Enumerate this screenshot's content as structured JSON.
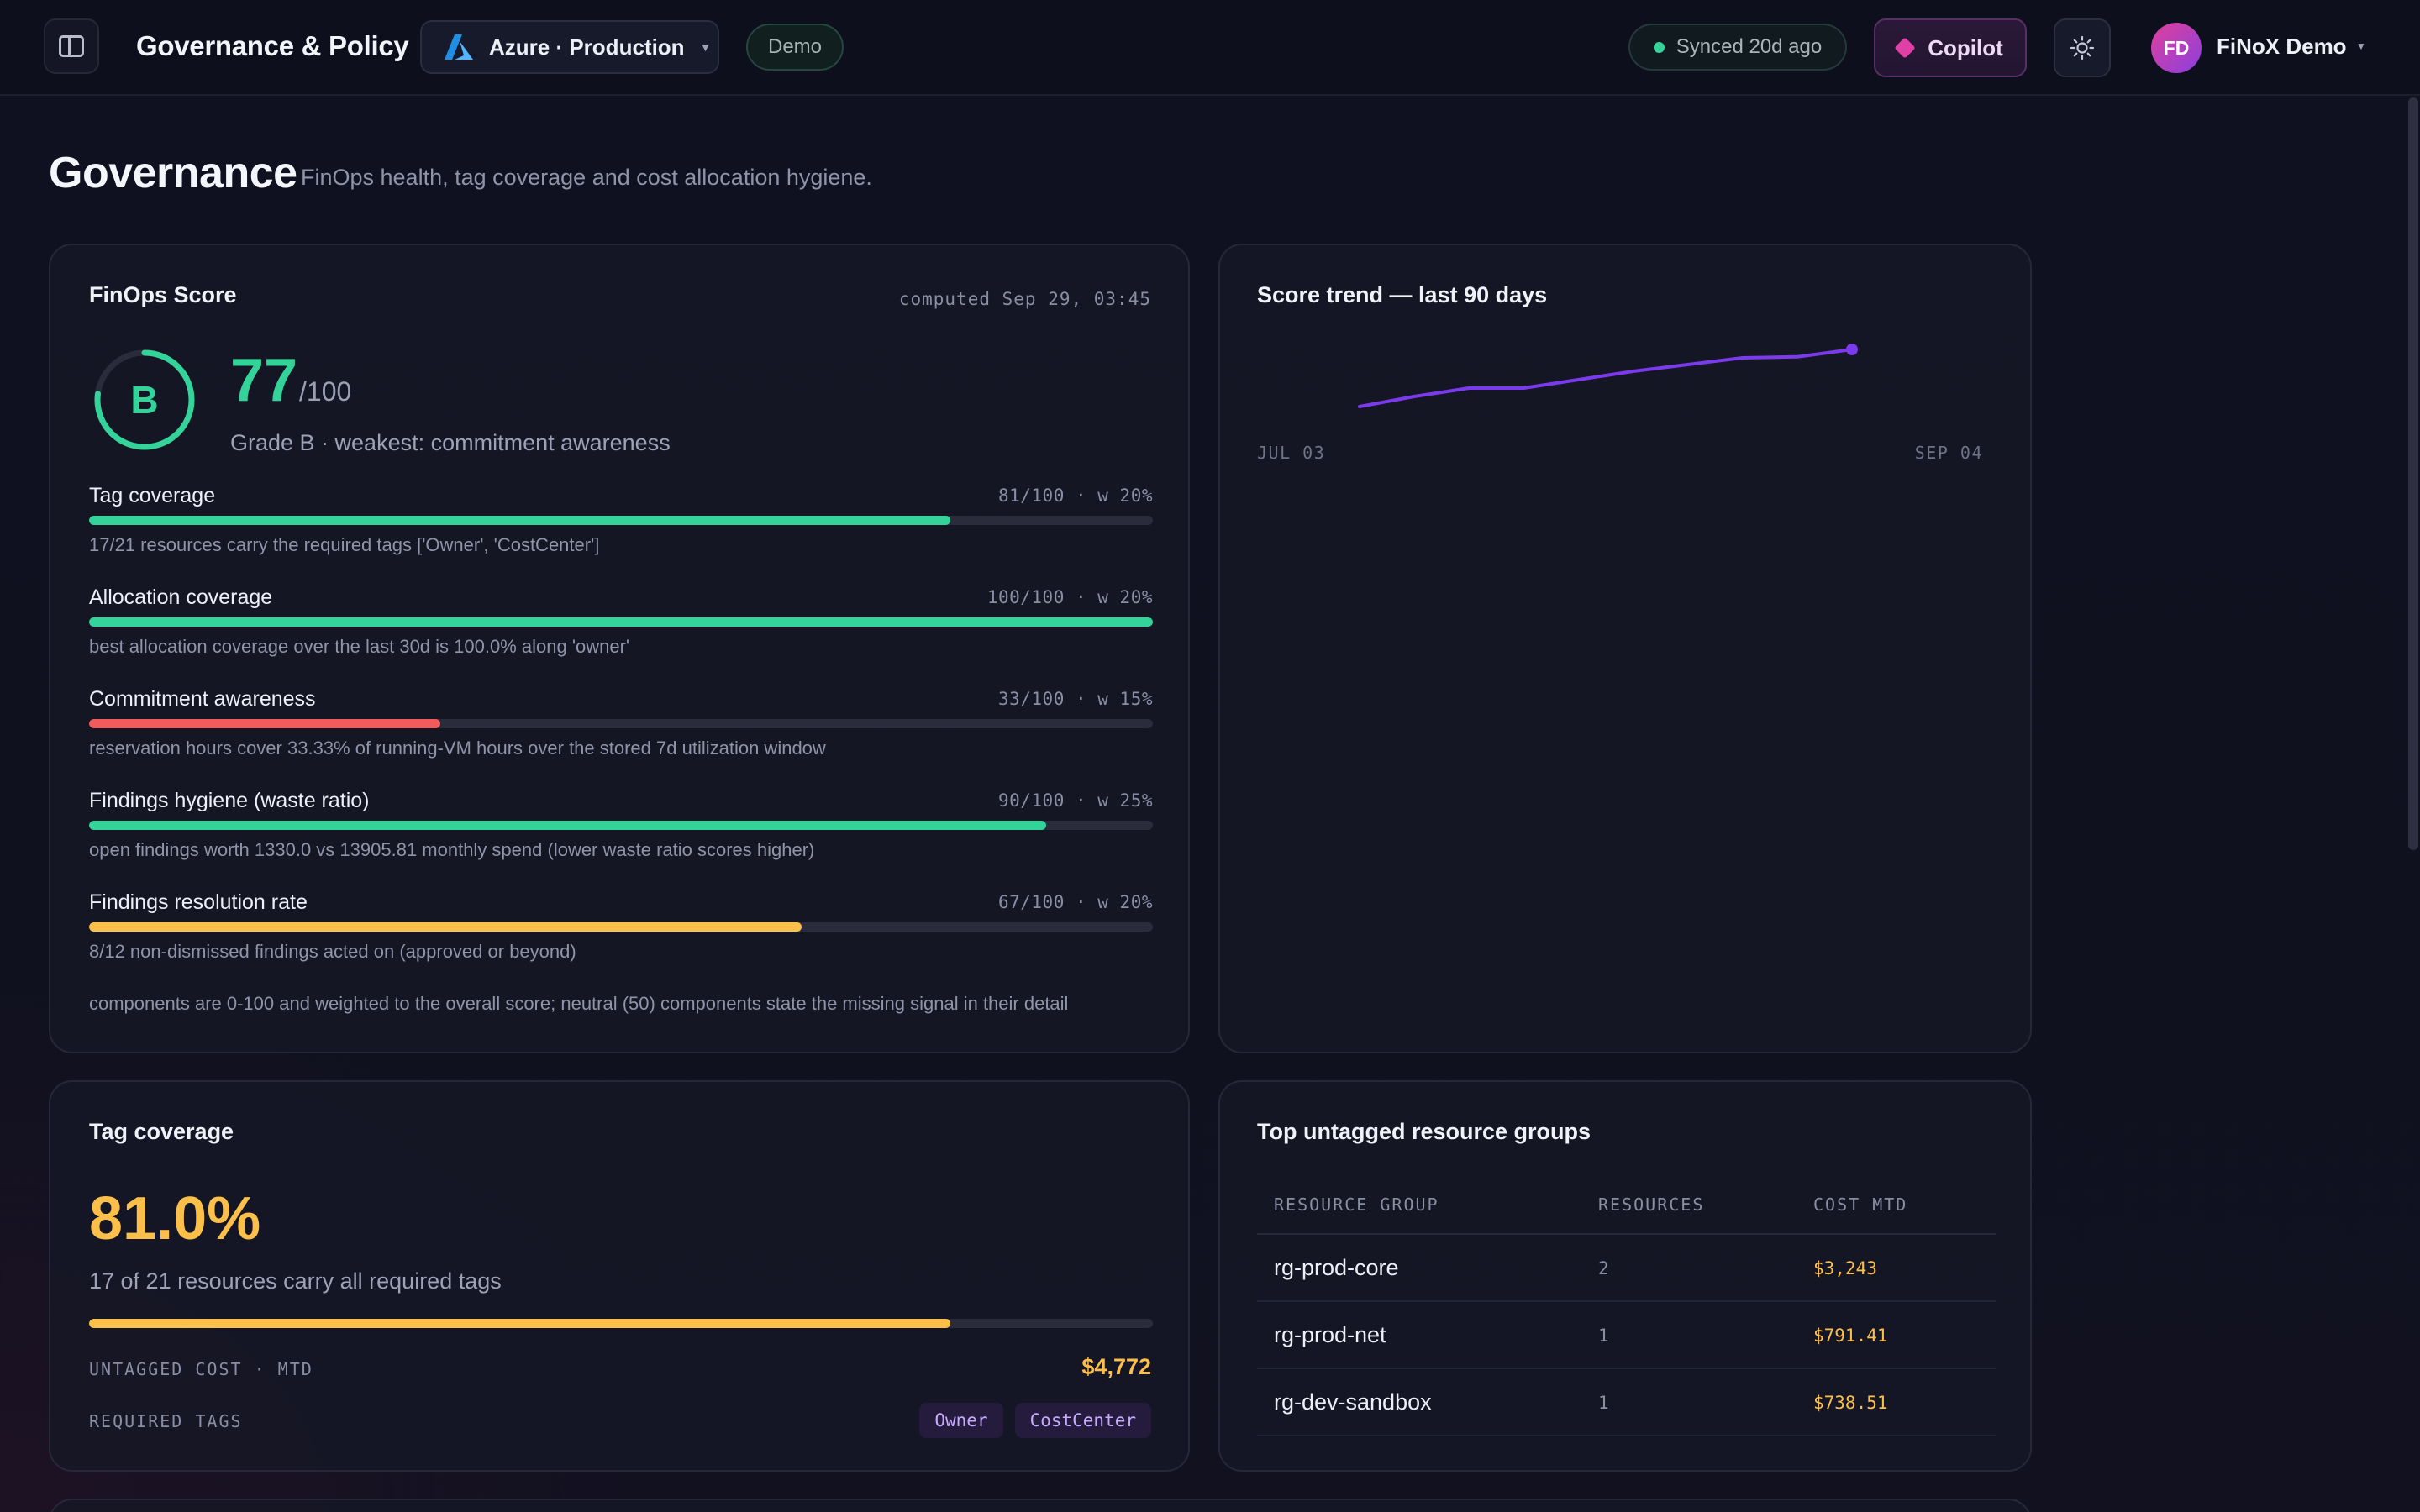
{
  "header": {
    "app_title": "Governance & Policy",
    "environment": "Azure · Production",
    "demo_badge": "Demo",
    "sync_status": "Synced 20d ago",
    "copilot_label": "Copilot",
    "user_initials": "FD",
    "user_name": "FiNoX Demo",
    "icons": [
      "sidebar-toggle-icon",
      "azure-logo-icon",
      "chevron-down-icon",
      "status-dot-icon",
      "sparkle-icon",
      "sun-icon"
    ]
  },
  "page": {
    "title": "Governance",
    "subtitle": "FinOps health, tag coverage and cost allocation hygiene."
  },
  "finops_score": {
    "title": "FinOps Score",
    "computed": "computed Sep 29, 03:45",
    "grade": "B",
    "score": "77",
    "max": "/100",
    "score_fraction": 0.77,
    "note": "Grade B · weakest: commitment awareness",
    "components": [
      {
        "name": "Tag coverage",
        "score_text": "81/100 · w 20%",
        "value": 81,
        "color": "#34d399",
        "detail": "17/21 resources carry the required tags ['Owner', 'CostCenter']"
      },
      {
        "name": "Allocation coverage",
        "score_text": "100/100 · w 20%",
        "value": 100,
        "color": "#34d399",
        "detail": "best allocation coverage over the last 30d is 100.0% along 'owner'"
      },
      {
        "name": "Commitment awareness",
        "score_text": "33/100 · w 15%",
        "value": 33,
        "color": "#f05b5b",
        "detail": "reservation hours cover 33.33% of running-VM hours over the stored 7d utilization window"
      },
      {
        "name": "Findings hygiene (waste ratio)",
        "score_text": "90/100 · w 25%",
        "value": 90,
        "color": "#34d399",
        "detail": "open findings worth 1330.0 vs 13905.81 monthly spend (lower waste ratio scores higher)"
      },
      {
        "name": "Findings resolution rate",
        "score_text": "67/100 · w 20%",
        "value": 67,
        "color": "#fbbf4a",
        "detail": "8/12 non-dismissed findings acted on (approved or beyond)"
      }
    ],
    "footnote": "components are 0-100 and weighted to the overall score; neutral (50) components state the missing signal in their detail"
  },
  "trend": {
    "title": "Score trend — last 90 days",
    "chart_data": {
      "type": "line",
      "x": [
        "Jul 03",
        "Jul 10",
        "Jul 17",
        "Jul 24",
        "Jul 31",
        "Aug 07",
        "Aug 14",
        "Aug 21",
        "Aug 28",
        "Sep 04"
      ],
      "series": [
        {
          "values": [
            62,
            65,
            67.5,
            67.5,
            70,
            72.5,
            74.5,
            76.5,
            76.8,
            79
          ]
        }
      ],
      "ylim": [
        55,
        85
      ],
      "x_tick_labels": [
        "JUL 03",
        "SEP 04"
      ],
      "grid": false,
      "line_color": "#7c3aed"
    }
  },
  "tag_coverage": {
    "title": "Tag coverage",
    "percent": "81.0%",
    "fraction": 0.81,
    "subtitle": "17 of 21 resources carry all required tags",
    "untagged_label": "UNTAGGED COST · MTD",
    "untagged_cost": "$4,772",
    "required_label": "REQUIRED TAGS",
    "required_tags": [
      "Owner",
      "CostCenter"
    ]
  },
  "untagged_groups": {
    "title": "Top untagged resource groups",
    "columns": [
      "RESOURCE GROUP",
      "RESOURCES",
      "COST MTD"
    ],
    "rows": [
      {
        "name": "rg-prod-core",
        "resources": "2",
        "cost": "$3,243"
      },
      {
        "name": "rg-prod-net",
        "resources": "1",
        "cost": "$791.41"
      },
      {
        "name": "rg-dev-sandbox",
        "resources": "1",
        "cost": "$738.51"
      }
    ]
  }
}
